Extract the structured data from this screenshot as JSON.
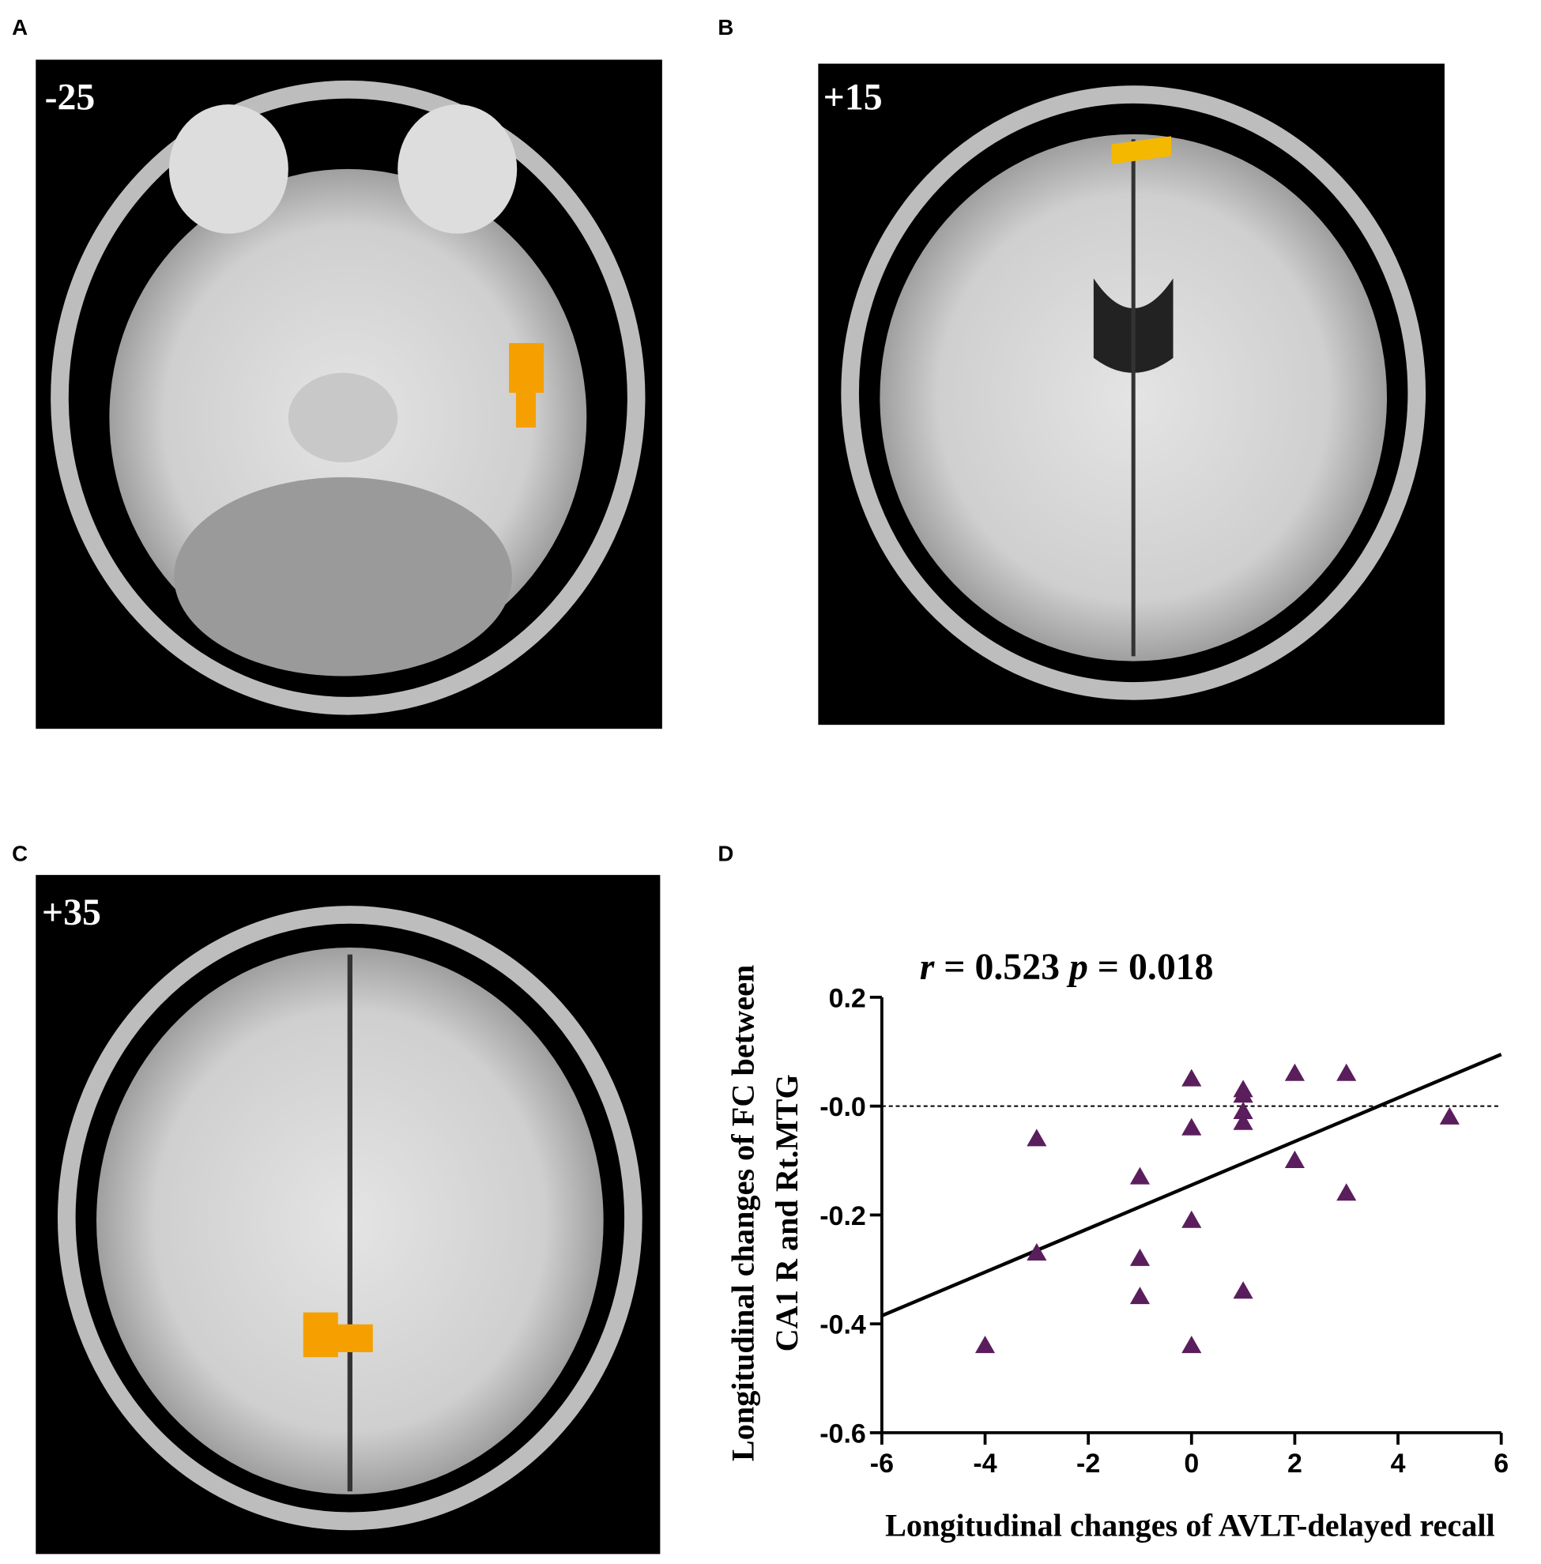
{
  "panel_labels": [
    "A",
    "B",
    "C",
    "D"
  ],
  "slice_labels": [
    "-25",
    "+15",
    "+35"
  ],
  "chart_data": {
    "type": "scatter",
    "title": [
      "r",
      " = 0.523 ",
      "p",
      " = 0.018"
    ],
    "x_label": "Longitudinal changes of AVLT-delayed recall",
    "y_label": [
      "Longitudinal changes of FC between",
      "CA1 R and Rt.MTG"
    ],
    "x": [
      -4,
      -3,
      -3,
      -1,
      -1,
      -1,
      0,
      0,
      0,
      0,
      1,
      1,
      1,
      1,
      1,
      2,
      2,
      3,
      3,
      5
    ],
    "values": [
      -0.44,
      -0.06,
      -0.27,
      -0.13,
      -0.28,
      -0.35,
      0.05,
      -0.04,
      -0.21,
      -0.44,
      0.03,
      0.02,
      -0.01,
      -0.03,
      -0.34,
      0.06,
      -0.1,
      0.06,
      -0.16,
      -0.02
    ],
    "color": "#5a1e5c",
    "fit_line": {
      "x": [
        -6,
        6
      ],
      "y": [
        -0.385,
        0.095
      ]
    },
    "reference_line": 0,
    "xlim": [
      -6,
      6
    ],
    "ylim": [
      -0.6,
      0.2
    ],
    "xticks": [
      -6,
      -4,
      -2,
      0,
      2,
      4,
      6
    ],
    "yticks": [
      0.2,
      {
        "value": 0,
        "label": "-0.0"
      },
      -0.2,
      -0.4,
      -0.6
    ]
  }
}
